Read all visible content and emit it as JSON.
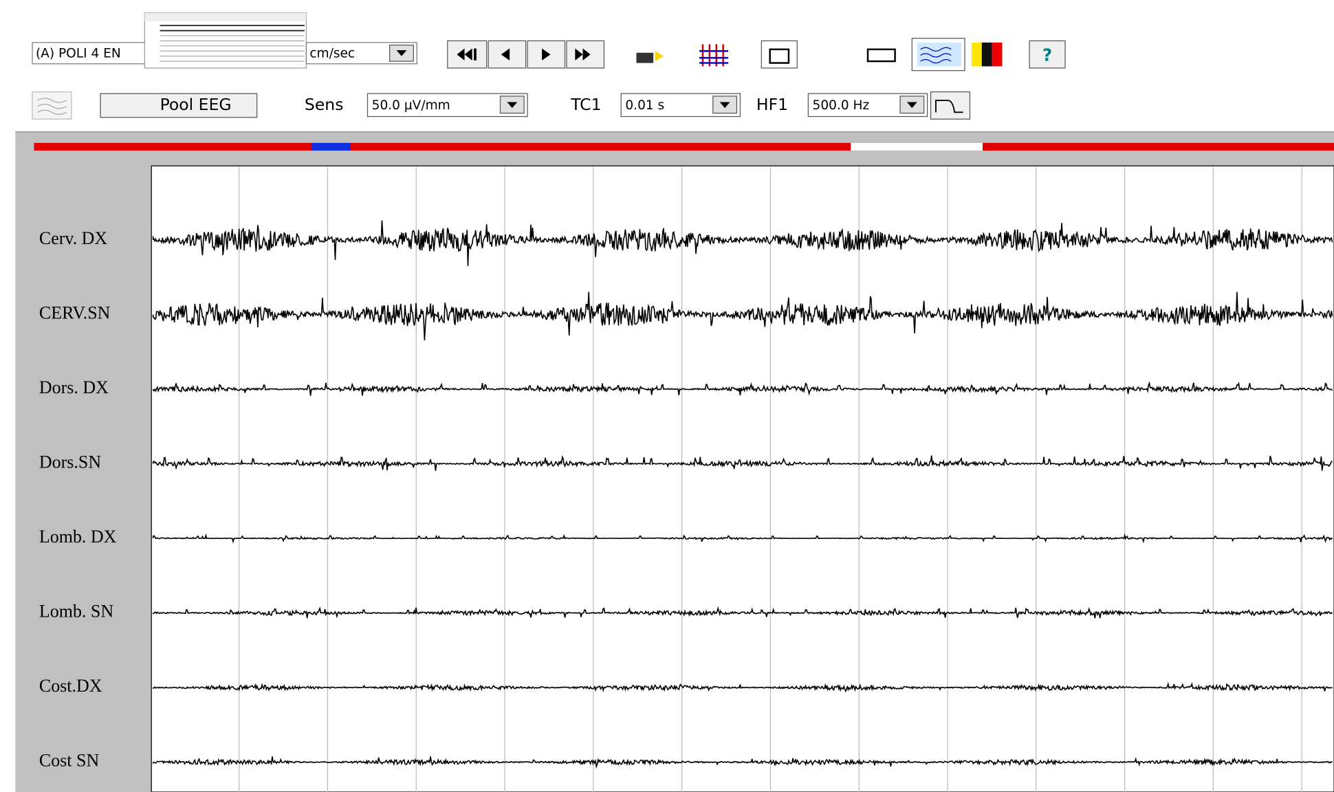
{
  "toolbar": {
    "montage": "(A) POLI 4 EN",
    "speed": "cm/sec",
    "help": "?",
    "pool": "Pool EEG",
    "sens_label": "Sens",
    "sens": "50.0 µV/mm",
    "tc_label": "TC1",
    "tc": "0.01 s",
    "hf_label": "HF1",
    "hf": "500.0 Hz"
  },
  "channels": [
    "Cerv. DX",
    "CERV.SN",
    "Dors. DX",
    "Dors.SN",
    "Lomb. DX",
    "Lomb. SN",
    "Cost.DX",
    "Cost SN"
  ]
}
